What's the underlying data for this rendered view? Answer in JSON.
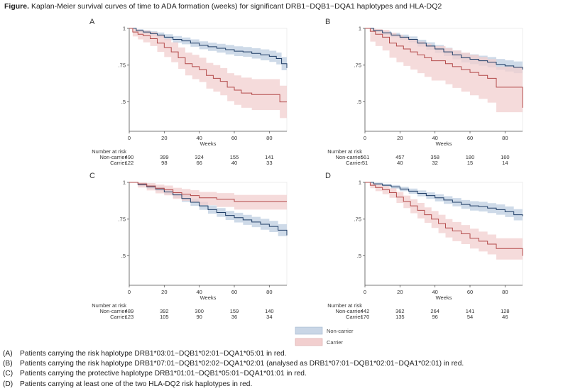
{
  "figure": {
    "title_bold": "Figure.",
    "title_rest": "Kaplan-Meier survival curves of time to ADA formation (weeks) for significant DRB1~DQB1~DQA1 haplotypes and HLA-DQ2"
  },
  "colors": {
    "noncarrier_line": "#1f3d66",
    "noncarrier_band": "#c9d6e6",
    "carrier_line": "#b34a4a",
    "carrier_band": "#f2cfcf",
    "axis": "#555555"
  },
  "legend": {
    "noncarrier": "Non-carrier",
    "carrier": "Carrier"
  },
  "captions": [
    {
      "label": "(A)",
      "text": "Patients carrying the risk haplotype DRB1*03:01~DQB1*02:01~DQA1*05:01 in red."
    },
    {
      "label": "(B)",
      "text": "Patients carrying the risk haplotype DRB1*07:01~DQB1*02:02~DQA1*02:01 (analysed as DRB1*07:01~DQB1*02:01~DQA1*02:01) in red."
    },
    {
      "label": "(C)",
      "text": "Patients carrying the protective haplotype DRB1*01:01~DQB1*05:01~DQA1*01:01 in red."
    },
    {
      "label": "(D)",
      "text": "Patients carrying at least one of the two HLA-DQ2 risk haplotypes in red."
    }
  ],
  "chart_data": [
    {
      "type": "line",
      "panel_label": "A",
      "xlabel": "Weeks",
      "xlim": [
        0,
        90
      ],
      "ylim": [
        0.3,
        1
      ],
      "xticks": [
        0,
        20,
        40,
        60,
        80
      ],
      "yticks": [
        1,
        0.75,
        0.5
      ],
      "ytick_labels": [
        "1",
        ".75",
        ".5"
      ],
      "risk_header": "Number at risk",
      "risk_rows": [
        "Non-carrier",
        "Carrier"
      ],
      "risk_values": [
        [
          490,
          399,
          324,
          155,
          141
        ],
        [
          122,
          98,
          66,
          40,
          33
        ]
      ],
      "series": [
        {
          "name": "Non-carrier",
          "x": [
            0,
            4,
            8,
            12,
            16,
            20,
            25,
            30,
            35,
            40,
            45,
            50,
            55,
            60,
            65,
            70,
            75,
            80,
            84,
            87,
            90
          ],
          "y": [
            1,
            0.985,
            0.975,
            0.965,
            0.955,
            0.94,
            0.925,
            0.915,
            0.9,
            0.885,
            0.875,
            0.865,
            0.855,
            0.845,
            0.84,
            0.83,
            0.82,
            0.81,
            0.795,
            0.76,
            0.73
          ],
          "upper": [
            1,
            0.995,
            0.988,
            0.98,
            0.972,
            0.96,
            0.948,
            0.938,
            0.925,
            0.912,
            0.903,
            0.895,
            0.887,
            0.878,
            0.873,
            0.865,
            0.857,
            0.848,
            0.835,
            0.805,
            0.78
          ],
          "lower": [
            1,
            0.975,
            0.962,
            0.95,
            0.938,
            0.92,
            0.902,
            0.892,
            0.875,
            0.858,
            0.847,
            0.835,
            0.823,
            0.812,
            0.807,
            0.795,
            0.783,
            0.772,
            0.755,
            0.715,
            0.68
          ]
        },
        {
          "name": "Carrier",
          "x": [
            0,
            2,
            5,
            8,
            12,
            16,
            20,
            24,
            28,
            32,
            36,
            40,
            44,
            48,
            52,
            56,
            60,
            64,
            70,
            76,
            80,
            86,
            90
          ],
          "y": [
            1,
            0.975,
            0.96,
            0.95,
            0.93,
            0.9,
            0.87,
            0.84,
            0.8,
            0.76,
            0.74,
            0.72,
            0.68,
            0.66,
            0.64,
            0.6,
            0.58,
            0.56,
            0.55,
            0.55,
            0.55,
            0.5,
            0.5
          ],
          "upper": [
            1,
            0.995,
            0.99,
            0.985,
            0.975,
            0.955,
            0.93,
            0.905,
            0.87,
            0.835,
            0.82,
            0.8,
            0.765,
            0.75,
            0.73,
            0.695,
            0.68,
            0.665,
            0.655,
            0.655,
            0.655,
            0.61,
            0.61
          ],
          "lower": [
            1,
            0.945,
            0.925,
            0.905,
            0.88,
            0.84,
            0.805,
            0.77,
            0.725,
            0.68,
            0.655,
            0.635,
            0.59,
            0.57,
            0.545,
            0.505,
            0.48,
            0.46,
            0.445,
            0.445,
            0.445,
            0.39,
            0.39
          ]
        }
      ]
    },
    {
      "type": "line",
      "panel_label": "B",
      "xlabel": "Weeks",
      "xlim": [
        0,
        90
      ],
      "ylim": [
        0.3,
        1
      ],
      "xticks": [
        0,
        20,
        40,
        60,
        80
      ],
      "yticks": [
        1,
        0.75,
        0.5
      ],
      "ytick_labels": [
        "1",
        ".75",
        ".5"
      ],
      "risk_header": "Number at risk",
      "risk_rows": [
        "Non-carrier",
        "Carrier"
      ],
      "risk_values": [
        [
          561,
          457,
          358,
          180,
          160
        ],
        [
          51,
          40,
          32,
          15,
          14
        ]
      ],
      "series": [
        {
          "name": "Non-carrier",
          "x": [
            0,
            5,
            10,
            15,
            20,
            25,
            30,
            35,
            40,
            45,
            50,
            55,
            60,
            65,
            70,
            75,
            80,
            85,
            90
          ],
          "y": [
            1,
            0.985,
            0.97,
            0.955,
            0.94,
            0.925,
            0.9,
            0.88,
            0.86,
            0.84,
            0.82,
            0.8,
            0.79,
            0.78,
            0.77,
            0.755,
            0.745,
            0.735,
            0.72
          ],
          "upper": [
            1,
            0.993,
            0.982,
            0.97,
            0.958,
            0.945,
            0.923,
            0.905,
            0.887,
            0.868,
            0.85,
            0.832,
            0.823,
            0.814,
            0.805,
            0.792,
            0.783,
            0.775,
            0.765
          ],
          "lower": [
            1,
            0.975,
            0.957,
            0.94,
            0.922,
            0.905,
            0.877,
            0.855,
            0.833,
            0.812,
            0.79,
            0.768,
            0.757,
            0.746,
            0.735,
            0.718,
            0.707,
            0.695,
            0.675
          ]
        },
        {
          "name": "Carrier",
          "x": [
            0,
            3,
            6,
            10,
            14,
            18,
            22,
            26,
            30,
            34,
            38,
            42,
            46,
            50,
            55,
            60,
            65,
            70,
            75,
            80,
            85,
            88,
            90
          ],
          "y": [
            1,
            0.98,
            0.96,
            0.94,
            0.9,
            0.88,
            0.86,
            0.84,
            0.82,
            0.8,
            0.78,
            0.78,
            0.76,
            0.74,
            0.72,
            0.7,
            0.68,
            0.66,
            0.6,
            0.6,
            0.6,
            0.6,
            0.46
          ],
          "upper": [
            1,
            1,
            0.995,
            0.99,
            0.97,
            0.955,
            0.94,
            0.925,
            0.91,
            0.895,
            0.88,
            0.88,
            0.865,
            0.85,
            0.835,
            0.82,
            0.805,
            0.79,
            0.74,
            0.74,
            0.74,
            0.74,
            0.62
          ],
          "lower": [
            1,
            0.91,
            0.88,
            0.85,
            0.8,
            0.77,
            0.745,
            0.72,
            0.695,
            0.67,
            0.645,
            0.645,
            0.62,
            0.595,
            0.57,
            0.545,
            0.52,
            0.495,
            0.43,
            0.43,
            0.43,
            0.43,
            0.32
          ]
        }
      ]
    },
    {
      "type": "line",
      "panel_label": "C",
      "xlabel": "Weeks",
      "xlim": [
        0,
        90
      ],
      "ylim": [
        0.3,
        1
      ],
      "xticks": [
        0,
        20,
        40,
        60,
        80
      ],
      "yticks": [
        1,
        0.75,
        0.5
      ],
      "ytick_labels": [
        "1",
        ".75",
        ".5"
      ],
      "risk_header": "Number at risk",
      "risk_rows": [
        "Non-carrier",
        "Carrier"
      ],
      "risk_values": [
        [
          489,
          392,
          300,
          159,
          140
        ],
        [
          123,
          105,
          90,
          36,
          34
        ]
      ],
      "series": [
        {
          "name": "Non-carrier",
          "x": [
            0,
            5,
            10,
            15,
            20,
            25,
            30,
            35,
            40,
            45,
            50,
            55,
            60,
            65,
            70,
            75,
            80,
            85,
            90
          ],
          "y": [
            1,
            0.985,
            0.97,
            0.955,
            0.935,
            0.915,
            0.89,
            0.865,
            0.84,
            0.815,
            0.795,
            0.775,
            0.76,
            0.745,
            0.73,
            0.715,
            0.7,
            0.675,
            0.64
          ],
          "upper": [
            1,
            0.995,
            0.983,
            0.97,
            0.953,
            0.935,
            0.913,
            0.89,
            0.867,
            0.843,
            0.825,
            0.806,
            0.793,
            0.779,
            0.765,
            0.752,
            0.738,
            0.716,
            0.685
          ],
          "lower": [
            1,
            0.975,
            0.957,
            0.94,
            0.917,
            0.895,
            0.867,
            0.84,
            0.813,
            0.787,
            0.765,
            0.744,
            0.727,
            0.711,
            0.695,
            0.678,
            0.662,
            0.634,
            0.595
          ]
        },
        {
          "name": "Carrier",
          "x": [
            0,
            5,
            10,
            15,
            20,
            25,
            30,
            35,
            40,
            50,
            60,
            70,
            80,
            90
          ],
          "y": [
            1,
            0.99,
            0.975,
            0.96,
            0.95,
            0.93,
            0.92,
            0.91,
            0.895,
            0.885,
            0.87,
            0.87,
            0.87,
            0.87
          ],
          "upper": [
            1,
            1,
            0.995,
            0.985,
            0.978,
            0.963,
            0.955,
            0.947,
            0.935,
            0.927,
            0.915,
            0.915,
            0.915,
            0.915
          ],
          "lower": [
            1,
            0.965,
            0.945,
            0.925,
            0.912,
            0.888,
            0.875,
            0.863,
            0.845,
            0.833,
            0.815,
            0.815,
            0.815,
            0.815
          ]
        }
      ]
    },
    {
      "type": "line",
      "panel_label": "D",
      "xlabel": "Weeks",
      "xlim": [
        0,
        90
      ],
      "ylim": [
        0.3,
        1
      ],
      "xticks": [
        0,
        20,
        40,
        60,
        80
      ],
      "yticks": [
        1,
        0.75,
        0.5
      ],
      "ytick_labels": [
        "1",
        ".75",
        ".5"
      ],
      "risk_header": "Number at risk",
      "risk_rows": [
        "Non-carrier",
        "Carrier"
      ],
      "risk_values": [
        [
          442,
          362,
          264,
          141,
          128
        ],
        [
          170,
          135,
          96,
          54,
          46
        ]
      ],
      "series": [
        {
          "name": "Non-carrier",
          "x": [
            0,
            5,
            10,
            15,
            20,
            25,
            30,
            35,
            40,
            45,
            50,
            55,
            60,
            65,
            70,
            75,
            80,
            85,
            90
          ],
          "y": [
            1,
            0.99,
            0.98,
            0.97,
            0.955,
            0.94,
            0.925,
            0.91,
            0.895,
            0.88,
            0.865,
            0.85,
            0.84,
            0.835,
            0.825,
            0.815,
            0.8,
            0.78,
            0.77
          ],
          "upper": [
            1,
            0.998,
            0.99,
            0.982,
            0.97,
            0.958,
            0.945,
            0.932,
            0.919,
            0.906,
            0.893,
            0.88,
            0.872,
            0.868,
            0.859,
            0.85,
            0.836,
            0.818,
            0.81
          ],
          "lower": [
            1,
            0.982,
            0.97,
            0.958,
            0.94,
            0.922,
            0.905,
            0.888,
            0.871,
            0.854,
            0.837,
            0.82,
            0.808,
            0.802,
            0.791,
            0.78,
            0.764,
            0.742,
            0.73
          ]
        },
        {
          "name": "Carrier",
          "x": [
            0,
            3,
            6,
            10,
            14,
            18,
            22,
            26,
            30,
            34,
            38,
            42,
            46,
            50,
            55,
            60,
            65,
            70,
            75,
            80,
            85,
            90
          ],
          "y": [
            1,
            0.98,
            0.965,
            0.95,
            0.93,
            0.9,
            0.87,
            0.84,
            0.81,
            0.78,
            0.75,
            0.72,
            0.69,
            0.67,
            0.65,
            0.62,
            0.6,
            0.58,
            0.55,
            0.55,
            0.55,
            0.5
          ],
          "upper": [
            1,
            0.995,
            0.985,
            0.975,
            0.96,
            0.935,
            0.91,
            0.885,
            0.86,
            0.83,
            0.805,
            0.78,
            0.75,
            0.73,
            0.71,
            0.685,
            0.665,
            0.645,
            0.62,
            0.62,
            0.62,
            0.585
          ],
          "lower": [
            1,
            0.96,
            0.94,
            0.92,
            0.895,
            0.86,
            0.825,
            0.79,
            0.755,
            0.725,
            0.69,
            0.655,
            0.625,
            0.6,
            0.58,
            0.55,
            0.53,
            0.51,
            0.475,
            0.475,
            0.475,
            0.41
          ]
        }
      ]
    }
  ]
}
